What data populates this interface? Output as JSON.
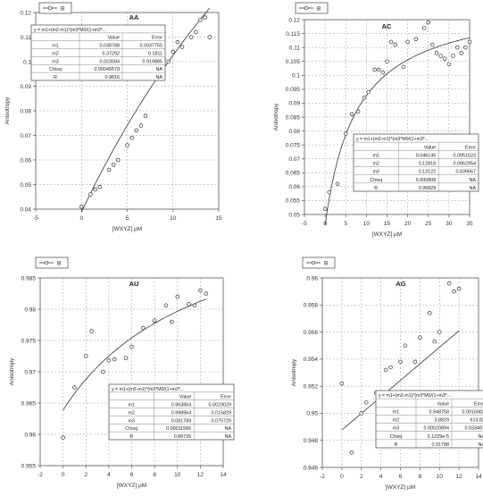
{
  "chart_data": [
    {
      "type": "scatter",
      "title": "AA",
      "xlabel": "[WXYZ] µM",
      "ylabel": "Anisotropy",
      "xlim": [
        -5,
        15
      ],
      "ylim": [
        0.04,
        0.12
      ],
      "xticks": [
        -5,
        0,
        5,
        10,
        15
      ],
      "yticks": [
        0.04,
        0.05,
        0.06,
        0.07,
        0.08,
        0.09,
        0.1,
        0.11,
        0.12
      ],
      "legend": "B",
      "grid": true,
      "series": [
        {
          "name": "B",
          "x": [
            0,
            1,
            1.5,
            2,
            3,
            3.5,
            4,
            5,
            5.5,
            6,
            6.5,
            7,
            8,
            9,
            9.5,
            10,
            10.5,
            11,
            12,
            12.5,
            13,
            13.5,
            14
          ],
          "y": [
            0.041,
            0.046,
            0.048,
            0.049,
            0.056,
            0.058,
            0.06,
            0.066,
            0.069,
            0.072,
            0.074,
            0.078,
            0.094,
            0.101,
            0.1,
            0.104,
            0.108,
            0.106,
            0.11,
            0.112,
            0.117,
            0.118,
            0.11
          ],
          "fit": {
            "equation": "y = m1+(m2-m1)*(m3*M0/(1+m3*...",
            "params": [
              {
                "name": "m1",
                "value": "0.038788",
                "error": "0.0937755"
              },
              {
                "name": "m2",
                "value": "0.37292",
                "error": "0.1811"
              },
              {
                "name": "m3",
                "value": "0.023594",
                "error": "0.919885"
              },
              {
                "name": "Chisq",
                "value": "0.00045579",
                "error": "NA"
              },
              {
                "name": "R",
                "value": "0.9816",
                "error": "NA"
              }
            ]
          }
        }
      ]
    },
    {
      "type": "scatter",
      "title": "AC",
      "xlabel": "[WXYZ] µM",
      "ylabel": "Anisotropy",
      "xlim": [
        -5,
        35
      ],
      "ylim": [
        0.05,
        0.12
      ],
      "xticks": [
        -5,
        0,
        5,
        10,
        15,
        20,
        25,
        30,
        35
      ],
      "yticks": [
        0.05,
        0.055,
        0.06,
        0.065,
        0.07,
        0.075,
        0.08,
        0.085,
        0.09,
        0.095,
        0.1,
        0.105,
        0.11,
        0.115,
        0.12
      ],
      "legend": "B",
      "grid": true,
      "series": [
        {
          "name": "B",
          "x": [
            0,
            1,
            3,
            5,
            6.5,
            8,
            9.5,
            10.5,
            12,
            13,
            14,
            15,
            16,
            17,
            19,
            20,
            22,
            24,
            25,
            26,
            27,
            28,
            29,
            30,
            31,
            32,
            33,
            34,
            35
          ],
          "y": [
            0.052,
            0.058,
            0.061,
            0.079,
            0.086,
            0.087,
            0.092,
            0.094,
            0.102,
            0.102,
            0.101,
            0.105,
            0.112,
            0.111,
            0.103,
            0.112,
            0.113,
            0.117,
            0.119,
            0.111,
            0.108,
            0.107,
            0.106,
            0.104,
            0.107,
            0.11,
            0.108,
            0.11,
            0.112
          ],
          "fit": {
            "equation": "y = m1+(m2-m1)*(m3*M0/(1+m3*...",
            "params": [
              {
                "name": "m1",
                "value": "0.046145",
                "error": "0.0951523"
              },
              {
                "name": "m2",
                "value": "0.12818",
                "error": "0.0962954"
              },
              {
                "name": "m3",
                "value": "0.13122",
                "error": "0.839667"
              },
              {
                "name": "Chisq",
                "value": "0.000808",
                "error": "NA"
              },
              {
                "name": "R",
                "value": "0.95829",
                "error": "NA"
              }
            ]
          }
        }
      ]
    },
    {
      "type": "scatter",
      "title": "AU",
      "xlabel": "[WXYZ] µM",
      "ylabel": "Anisotropy",
      "xlim": [
        -2,
        14
      ],
      "ylim": [
        0.955,
        0.985
      ],
      "xticks": [
        -2,
        0,
        2,
        4,
        6,
        8,
        10,
        12,
        14
      ],
      "yticks": [
        0.955,
        0.96,
        0.965,
        0.97,
        0.975,
        0.98,
        0.985
      ],
      "legend": "B",
      "grid": true,
      "series": [
        {
          "name": "B",
          "x": [
            0,
            1,
            2,
            2.5,
            3.5,
            4,
            4.5,
            5.5,
            6,
            7,
            8,
            9,
            9.5,
            10,
            11,
            11.5,
            12,
            12.5
          ],
          "y": [
            0.9595,
            0.9675,
            0.9725,
            0.9765,
            0.97,
            0.9718,
            0.972,
            0.9722,
            0.974,
            0.977,
            0.9782,
            0.9806,
            0.978,
            0.982,
            0.9808,
            0.9806,
            0.983,
            0.9825
          ],
          "fit": {
            "equation": "y = m1+(m2-m1)*(m3*M0/(1+m3*...",
            "params": [
              {
                "name": "m1",
                "value": "0.963864",
                "error": "0.0023029"
              },
              {
                "name": "m2",
                "value": "0.998964",
                "error": "0.015829"
              },
              {
                "name": "m3",
                "value": "0.081789",
                "error": "0.075729"
              },
              {
                "name": "Chisq",
                "value": "0.00011566",
                "error": "NA"
              },
              {
                "name": "R",
                "value": "0.89735",
                "error": "NA"
              }
            ]
          }
        }
      ]
    },
    {
      "type": "scatter",
      "title": "AG",
      "xlabel": "[WXYZ] µM",
      "ylabel": "Anisotropy",
      "xlim": [
        -2,
        14
      ],
      "ylim": [
        0.946,
        0.96
      ],
      "xticks": [
        -2,
        0,
        2,
        4,
        6,
        8,
        10,
        12,
        14
      ],
      "yticks": [
        0.946,
        0.948,
        0.95,
        0.952,
        0.954,
        0.956,
        0.958,
        0.96
      ],
      "legend": "B",
      "grid": true,
      "series": [
        {
          "name": "B",
          "x": [
            0,
            1,
            2,
            2.5,
            3.5,
            4,
            4.5,
            5,
            6,
            6.5,
            7.5,
            8,
            9,
            9.5,
            10,
            11,
            11.5,
            12
          ],
          "y": [
            0.9522,
            0.9471,
            0.95,
            0.9508,
            0.9515,
            0.9508,
            0.9532,
            0.9534,
            0.9538,
            0.955,
            0.9538,
            0.9556,
            0.9574,
            0.9553,
            0.956,
            0.9596,
            0.959,
            0.9592
          ],
          "fit": {
            "equation": "y = m1+(m2-m1)*(m3*M0/(1+m3*...",
            "params": [
              {
                "name": "m1",
                "value": "0.948758",
                "error": "0.0016082"
              },
              {
                "name": "m2",
                "value": "3.8829",
                "error": "613.82"
              },
              {
                "name": "m3",
                "value": "0.00020894",
                "error": "0.033497"
              },
              {
                "name": "Chisq",
                "value": "5.1229e-5",
                "error": "NA"
              },
              {
                "name": "R",
                "value": "0.91798",
                "error": "NA"
              }
            ]
          }
        }
      ]
    }
  ],
  "table_headers": [
    "",
    "Value",
    "Error"
  ]
}
